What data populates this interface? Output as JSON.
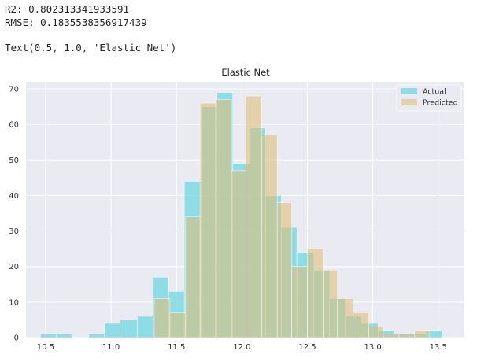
{
  "output": {
    "r2_line": "R2: 0.802313341933591",
    "rmse_line": "RMSE: 0.1835538356917439",
    "text_repr": "Text(0.5, 1.0, 'Elastic Net')"
  },
  "colors": {
    "background": "#eaeaf2",
    "grid": "#ffffff",
    "actual": "#6ed7e2",
    "predicted": "#dcc07a"
  },
  "chart_data": {
    "type": "histogram",
    "title": "Elastic Net",
    "xlabel": "",
    "ylabel": "",
    "xlim": [
      10.35,
      13.7
    ],
    "ylim": [
      0,
      72
    ],
    "xticks": [
      10.5,
      11.0,
      11.5,
      12.0,
      12.5,
      13.0,
      13.5
    ],
    "xtick_labels": [
      "10.5",
      "11.0",
      "11.5",
      "12.0",
      "12.5",
      "13.0",
      "13.5"
    ],
    "yticks": [
      0,
      10,
      20,
      30,
      40,
      50,
      60,
      70
    ],
    "ytick_labels": [
      "0",
      "10",
      "20",
      "30",
      "40",
      "50",
      "60",
      "70"
    ],
    "grid": true,
    "legend_position": "top-right",
    "series": [
      {
        "name": "Actual",
        "bins": [
          [
            10.46,
            10.58,
            1
          ],
          [
            10.58,
            10.7,
            1
          ],
          [
            10.7,
            10.83,
            0
          ],
          [
            10.83,
            10.95,
            1
          ],
          [
            10.95,
            11.07,
            4
          ],
          [
            11.07,
            11.2,
            5
          ],
          [
            11.2,
            11.32,
            6
          ],
          [
            11.32,
            11.44,
            17
          ],
          [
            11.44,
            11.56,
            13
          ],
          [
            11.56,
            11.69,
            44
          ],
          [
            11.69,
            11.81,
            65
          ],
          [
            11.81,
            11.93,
            69
          ],
          [
            11.93,
            12.06,
            49
          ],
          [
            12.06,
            12.18,
            59
          ],
          [
            12.18,
            12.3,
            40
          ],
          [
            12.3,
            12.42,
            31
          ],
          [
            12.42,
            12.55,
            24
          ],
          [
            12.55,
            12.67,
            19
          ],
          [
            12.67,
            12.79,
            11
          ],
          [
            12.79,
            12.91,
            6
          ],
          [
            12.91,
            13.04,
            4
          ],
          [
            13.04,
            13.16,
            2
          ],
          [
            13.16,
            13.28,
            1
          ],
          [
            13.28,
            13.41,
            1
          ],
          [
            13.41,
            13.53,
            2
          ]
        ]
      },
      {
        "name": "Predicted",
        "bins": [
          [
            11.33,
            11.45,
            11
          ],
          [
            11.45,
            11.57,
            7
          ],
          [
            11.57,
            11.68,
            34
          ],
          [
            11.68,
            11.8,
            66
          ],
          [
            11.8,
            11.92,
            67
          ],
          [
            11.92,
            12.03,
            47
          ],
          [
            12.03,
            12.15,
            68
          ],
          [
            12.15,
            12.27,
            57
          ],
          [
            12.27,
            12.38,
            38
          ],
          [
            12.38,
            12.5,
            20
          ],
          [
            12.5,
            12.62,
            25
          ],
          [
            12.62,
            12.73,
            19
          ],
          [
            12.73,
            12.85,
            11
          ],
          [
            12.85,
            12.97,
            7
          ],
          [
            12.97,
            13.08,
            3
          ],
          [
            13.08,
            13.2,
            1
          ],
          [
            13.2,
            13.32,
            1
          ],
          [
            13.32,
            13.43,
            2
          ]
        ]
      }
    ]
  }
}
